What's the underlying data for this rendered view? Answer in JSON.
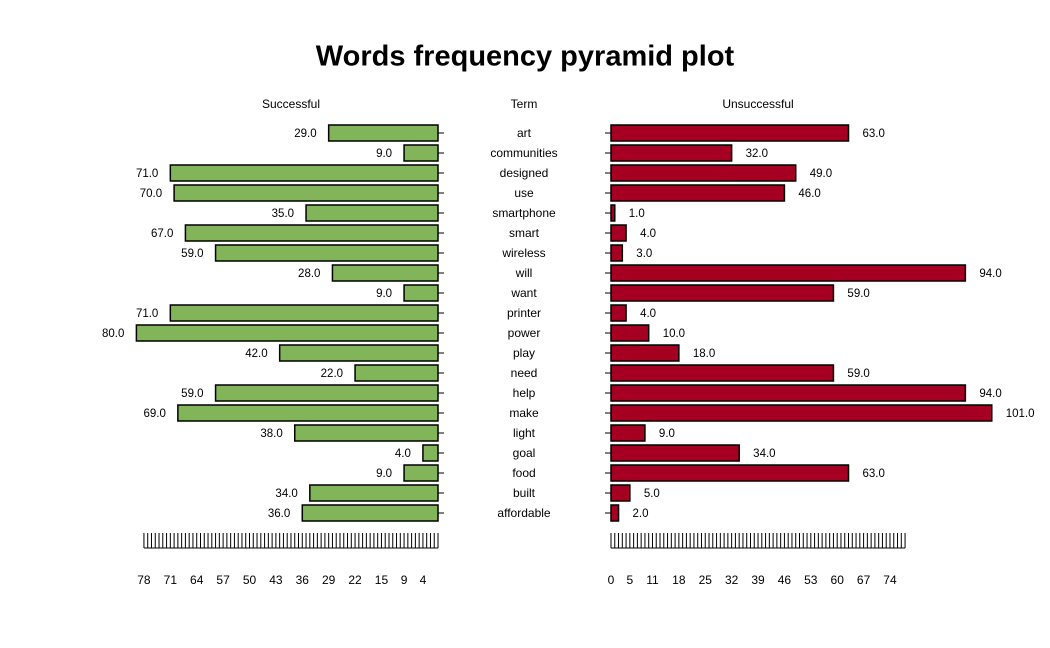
{
  "chart_data": {
    "type": "pyramid",
    "title": "Words frequency pyramid plot",
    "category_label": "Term",
    "categories": [
      "art",
      "communities",
      "designed",
      "use",
      "smartphone",
      "smart",
      "wireless",
      "will",
      "want",
      "printer",
      "power",
      "play",
      "need",
      "help",
      "make",
      "light",
      "goal",
      "food",
      "built",
      "affordable"
    ],
    "series": [
      {
        "name": "Successful",
        "color": "#82b45a",
        "side": "left",
        "values": [
          29,
          9,
          71,
          70,
          35,
          67,
          59,
          28,
          9,
          71,
          80,
          42,
          22,
          59,
          69,
          38,
          4,
          9,
          34,
          36
        ],
        "value_labels": [
          "29.0",
          "9.0",
          "71.0",
          "70.0",
          "35.0",
          "67.0",
          "59.0",
          "28.0",
          "9.0",
          "71.0",
          "80.0",
          "42.0",
          "22.0",
          "59.0",
          "69.0",
          "38.0",
          "4.0",
          "9.0",
          "34.0",
          "36.0"
        ],
        "xlim": [
          0,
          78
        ],
        "xticks": [
          4,
          9,
          15,
          22,
          29,
          36,
          43,
          50,
          57,
          64,
          71,
          78
        ]
      },
      {
        "name": "Unsuccessful",
        "color": "#a50021",
        "side": "right",
        "values": [
          63,
          32,
          49,
          46,
          1,
          4,
          3,
          94,
          59,
          4,
          10,
          18,
          59,
          94,
          101,
          9,
          34,
          63,
          5,
          2
        ],
        "value_labels": [
          "63.0",
          "32.0",
          "49.0",
          "46.0",
          "1.0",
          "4.0",
          "3.0",
          "94.0",
          "59.0",
          "4.0",
          "10.0",
          "18.0",
          "59.0",
          "94.0",
          "101.0",
          "9.0",
          "34.0",
          "63.0",
          "5.0",
          "2.0"
        ],
        "xlim": [
          0,
          78
        ],
        "xticks": [
          0,
          5,
          11,
          18,
          25,
          32,
          39,
          46,
          53,
          60,
          67,
          74
        ]
      }
    ]
  }
}
